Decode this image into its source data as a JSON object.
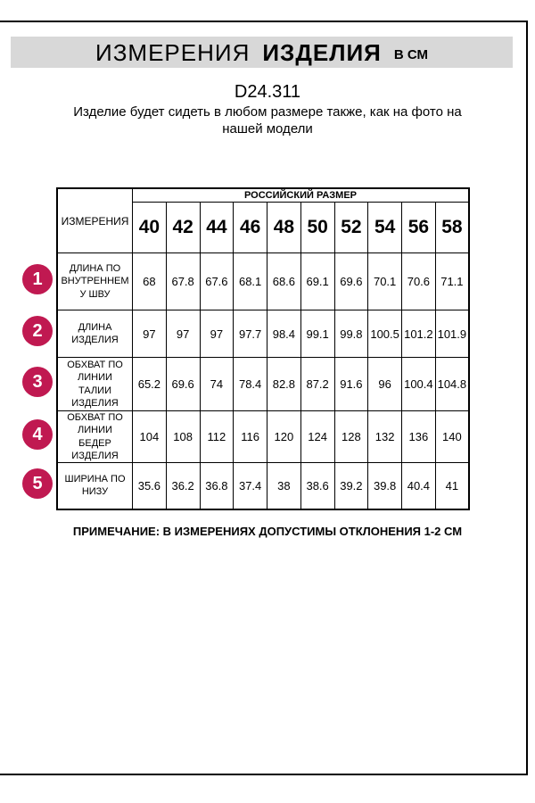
{
  "colors": {
    "accent": "#c01951",
    "title_bar_bg": "#d8d8d8"
  },
  "header": {
    "title_regular": "ИЗМЕРЕНИЯ",
    "title_bold": "ИЗДЕЛИЯ",
    "title_units": "В СМ"
  },
  "model_code": "D24.311",
  "description": "Изделие будет сидеть в любом размере также, как на фото на нашей модели",
  "table": {
    "measurements_header": "ИЗМЕРЕНИЯ",
    "size_group_header": "РОССИЙСКИЙ РАЗМЕР",
    "sizes": [
      "40",
      "42",
      "44",
      "46",
      "48",
      "50",
      "52",
      "54",
      "56",
      "58"
    ],
    "rows": [
      {
        "marker": "1",
        "label": "ДЛИНА ПО ВНУТРЕННЕМУ ШВУ",
        "values": [
          "68",
          "67.8",
          "67.6",
          "68.1",
          "68.6",
          "69.1",
          "69.6",
          "70.1",
          "70.6",
          "71.1"
        ]
      },
      {
        "marker": "2",
        "label": "ДЛИНА ИЗДЕЛИЯ",
        "values": [
          "97",
          "97",
          "97",
          "97.7",
          "98.4",
          "99.1",
          "99.8",
          "100.5",
          "101.2",
          "101.9"
        ]
      },
      {
        "marker": "3",
        "label": "ОБХВАТ ПО ЛИНИИ ТАЛИИ ИЗДЕЛИЯ",
        "values": [
          "65.2",
          "69.6",
          "74",
          "78.4",
          "82.8",
          "87.2",
          "91.6",
          "96",
          "100.4",
          "104.8"
        ]
      },
      {
        "marker": "4",
        "label": "ОБХВАТ ПО ЛИНИИ БЕДЕР ИЗДЕЛИЯ",
        "values": [
          "104",
          "108",
          "112",
          "116",
          "120",
          "124",
          "128",
          "132",
          "136",
          "140"
        ]
      },
      {
        "marker": "5",
        "label": "ШИРИНА ПО НИЗУ",
        "values": [
          "35.6",
          "36.2",
          "36.8",
          "37.4",
          "38",
          "38.6",
          "39.2",
          "39.8",
          "40.4",
          "41"
        ]
      }
    ]
  },
  "markers": [
    "1",
    "2",
    "3",
    "4",
    "5"
  ],
  "note": "ПРИМЕЧАНИЕ: В ИЗМЕРЕНИЯХ ДОПУСТИМЫ ОТКЛОНЕНИЯ 1-2 СМ"
}
